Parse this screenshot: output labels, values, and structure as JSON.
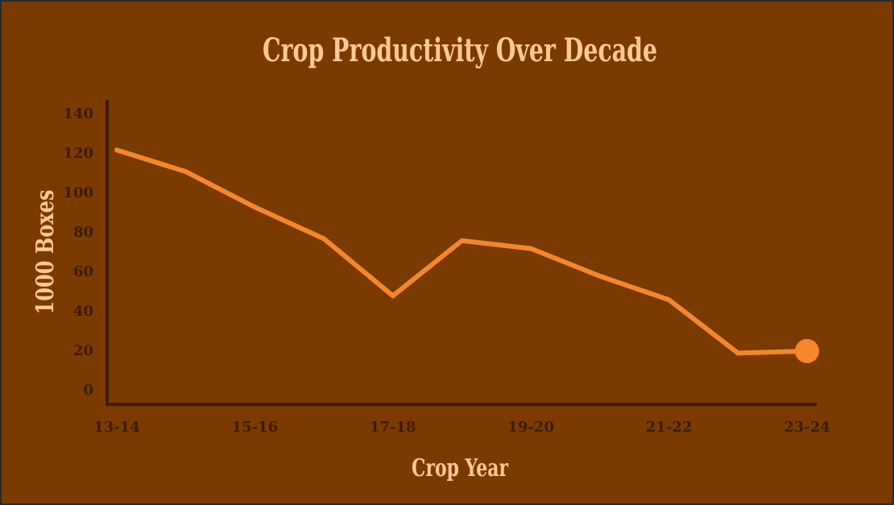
{
  "chart_data": {
    "type": "line",
    "title": "Crop Productivity Over Decade",
    "x_label": "Crop Year",
    "y_label": "1000 Boxes",
    "categories": [
      "13-14",
      null,
      "15-16",
      null,
      "17-18",
      null,
      "19-20",
      null,
      "21-22",
      null,
      "23-24"
    ],
    "series": [
      {
        "name": "1000 Boxes",
        "color": "#f5862a",
        "values": [
          122,
          111,
          93,
          77,
          48,
          76,
          72,
          58,
          46,
          19,
          20
        ]
      }
    ],
    "ylim": [
      -7,
      147
    ],
    "yticks": [
      0,
      20,
      40,
      60,
      80,
      100,
      120,
      140
    ],
    "grid": false,
    "end_marker": true
  }
}
